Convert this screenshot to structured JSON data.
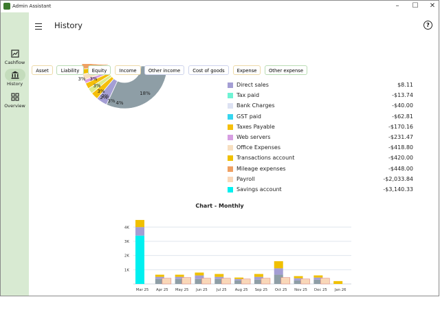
{
  "window": {
    "title": "Admin Assistant",
    "controls": [
      "–",
      "☐",
      "✕"
    ]
  },
  "sidebar": {
    "items": [
      {
        "label": "Cashflow",
        "icon": "chart-icon"
      },
      {
        "label": "History",
        "icon": "bank-icon",
        "active": true
      },
      {
        "label": "Overview",
        "icon": "dashboard-icon"
      }
    ]
  },
  "header": {
    "title": "History",
    "help_icon": "help-icon"
  },
  "filters": [
    "Asset",
    "Liability",
    "Equity",
    "Income",
    "Other income",
    "Cost of goods",
    "Expense",
    "Other expense"
  ],
  "pie": {
    "labels": [
      "3%",
      "3%",
      "3%",
      "2%",
      "3%",
      "4%",
      "18%",
      "3%",
      "2%"
    ]
  },
  "legend": [
    {
      "name": "Direct sales",
      "value": "$8.11",
      "color": "#a49ed4"
    },
    {
      "name": "Tax paid",
      "value": "-$13.74",
      "color": "#6ff3d4"
    },
    {
      "name": "Bank Charges",
      "value": "-$40.00",
      "color": "#dde2f3"
    },
    {
      "name": "GST paid",
      "value": "-$62.81",
      "color": "#36d6ef"
    },
    {
      "name": "Taxes Payable",
      "value": "-$170.16",
      "color": "#f5bf0b"
    },
    {
      "name": "Web servers",
      "value": "-$231.47",
      "color": "#d79ee2"
    },
    {
      "name": "Office Expenses",
      "value": "-$418.80",
      "color": "#f7dfc0"
    },
    {
      "name": "Transactions account",
      "value": "-$420.00",
      "color": "#f0c000"
    },
    {
      "name": "Mileage expenses",
      "value": "-$448.00",
      "color": "#f0a062"
    },
    {
      "name": "Payroll",
      "value": "-$2,033.84",
      "color": "#f9d7b8"
    },
    {
      "name": "Savings account",
      "value": "-$3,140.33",
      "color": "#00f0f0"
    }
  ],
  "chart_data": {
    "type": "bar",
    "title": "Chart -  Monthly",
    "categories": [
      "Mar 25",
      "Apr 25",
      "May 25",
      "Jun 25",
      "Jul 25",
      "Aug 25",
      "Sep 25",
      "Oct 25",
      "Nov 25",
      "Dec 25",
      "Jan 26"
    ],
    "yticks": [
      "1K",
      "2K",
      "3K",
      "4K"
    ],
    "ylim": [
      0,
      4400
    ],
    "series": [
      {
        "values": [
          3400,
          350,
          350,
          350,
          350,
          250,
          300,
          650,
          250,
          300,
          0
        ]
      },
      {
        "values": [
          600,
          150,
          150,
          250,
          150,
          100,
          200,
          450,
          150,
          150,
          0
        ]
      },
      {
        "values": [
          500,
          150,
          150,
          200,
          200,
          100,
          200,
          500,
          150,
          150,
          200
        ]
      },
      {
        "values": [
          0,
          400,
          450,
          400,
          400,
          350,
          400,
          450,
          350,
          400,
          0
        ]
      }
    ],
    "colors": {
      "cyan": "#00f0f0",
      "gray": "#8e9ea6",
      "purple": "#a49ed4",
      "yellow": "#f0c000",
      "peach": "#f9d7b8"
    }
  }
}
